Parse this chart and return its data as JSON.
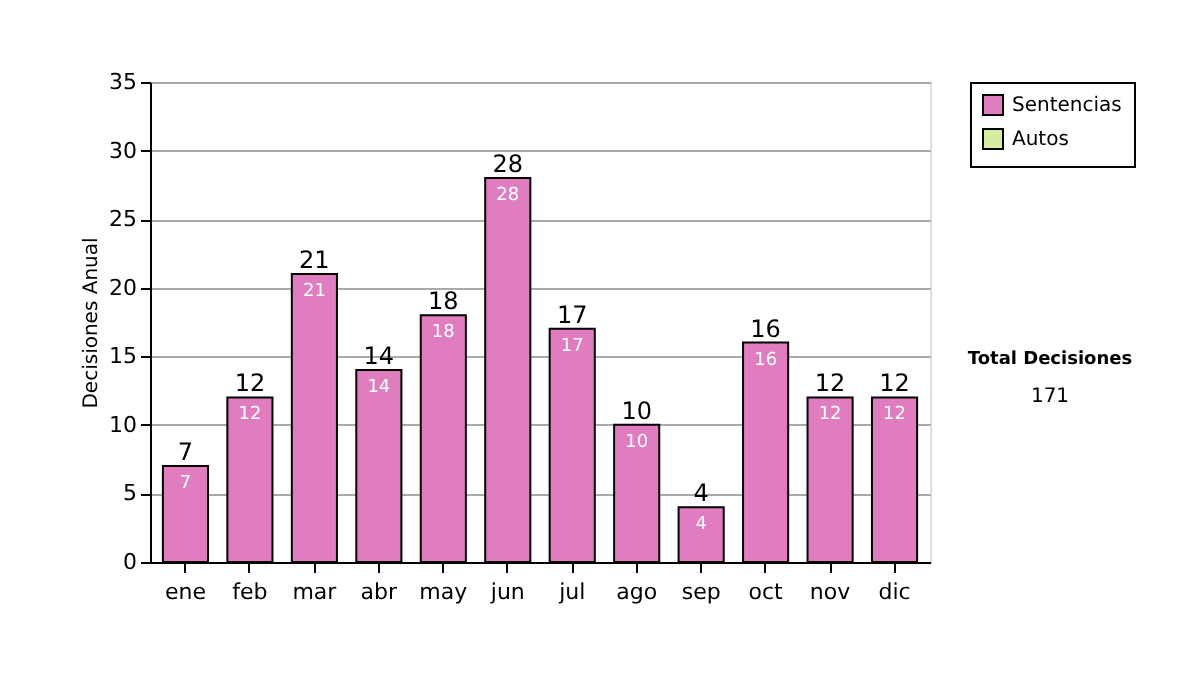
{
  "chart_data": {
    "type": "bar",
    "ylabel": "Decisiones Anual",
    "categories": [
      "ene",
      "feb",
      "mar",
      "abr",
      "may",
      "jun",
      "jul",
      "ago",
      "sep",
      "oct",
      "nov",
      "dic"
    ],
    "series": [
      {
        "name": "Sentencias",
        "color": "#e07cc0",
        "values": [
          7,
          12,
          21,
          14,
          18,
          28,
          17,
          10,
          4,
          16,
          12,
          12
        ]
      },
      {
        "name": "Autos",
        "color": "#d8eca0",
        "values": [
          null,
          null,
          null,
          null,
          null,
          null,
          null,
          null,
          null,
          null,
          null,
          null
        ]
      }
    ],
    "data_labels": true,
    "totals": [
      "7",
      "12",
      "21",
      "14",
      "18",
      "28",
      "17",
      "10",
      "4",
      "16",
      "12",
      "12"
    ],
    "ylim": [
      0,
      35
    ],
    "yticks": [
      0,
      5,
      10,
      15,
      20,
      25,
      30,
      35
    ],
    "grid": "y",
    "legend": "right",
    "annotations": [
      "Total Decisiones",
      "171"
    ]
  }
}
